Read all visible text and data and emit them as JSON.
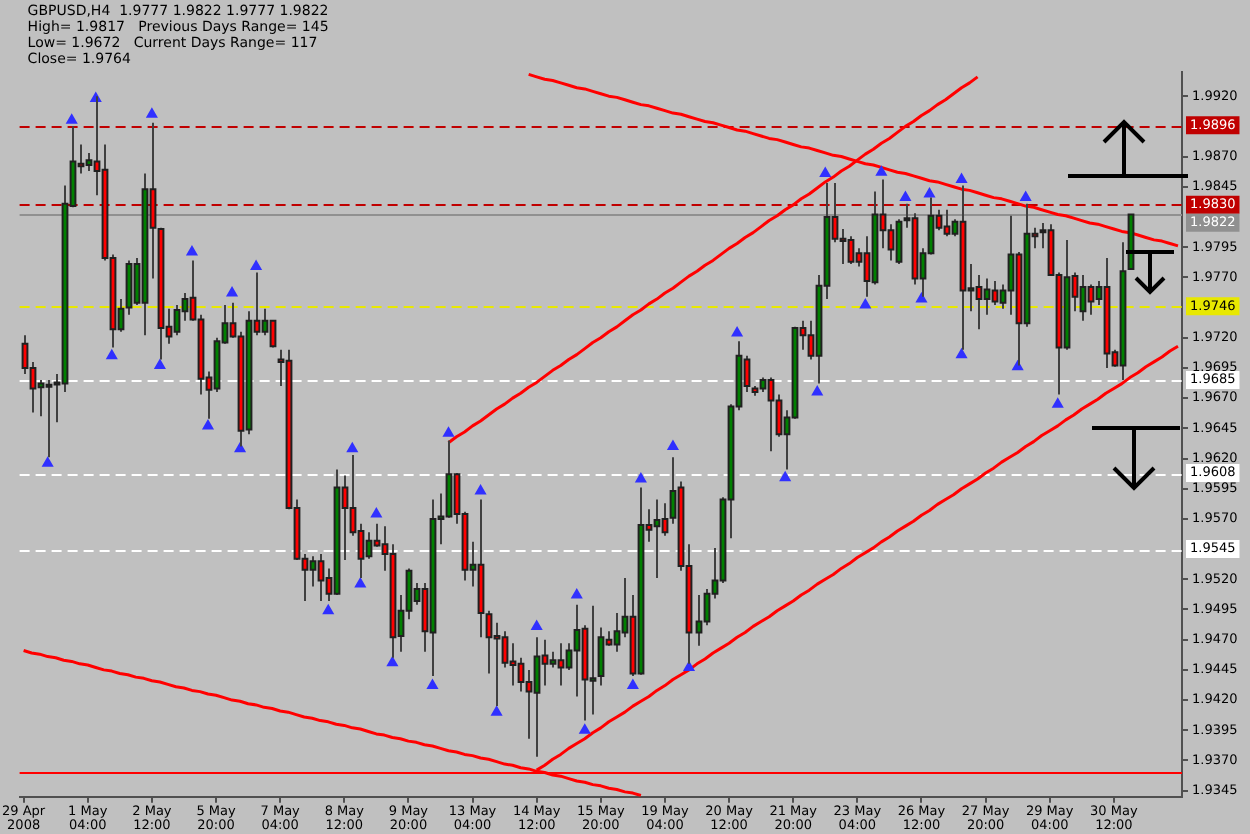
{
  "chart_data": {
    "type": "candlestick",
    "annotations": [
      "GBPUSD,H4  1.9777 1.9822 1.9777 1.9822",
      "High= 1.9817   Previous Days Range= 145",
      "Low= 1.9672   Current Days Range= 117",
      "Close= 1.9764"
    ],
    "categories": [
      "29 Apr 2008",
      null,
      null,
      null,
      null,
      null,
      null,
      null,
      "1 May 04:00",
      null,
      null,
      null,
      null,
      null,
      null,
      null,
      "2 May 12:00",
      null,
      null,
      null,
      null,
      null,
      null,
      null,
      "5 May 20:00",
      null,
      null,
      null,
      null,
      null,
      null,
      null,
      "7 May 04:00",
      null,
      null,
      null,
      null,
      null,
      null,
      null,
      "8 May 12:00",
      null,
      null,
      null,
      null,
      null,
      null,
      null,
      "9 May 20:00",
      null,
      null,
      null,
      null,
      null,
      null,
      null,
      "13 May 04:00",
      null,
      null,
      null,
      null,
      null,
      null,
      null,
      "14 May 12:00",
      null,
      null,
      null,
      null,
      null,
      null,
      null,
      "15 May 20:00",
      null,
      null,
      null,
      null,
      null,
      null,
      null,
      "19 May 04:00",
      null,
      null,
      null,
      null,
      null,
      null,
      null,
      "20 May 12:00",
      null,
      null,
      null,
      null,
      null,
      null,
      null,
      "21 May 20:00",
      null,
      null,
      null,
      null,
      null,
      null,
      null,
      "23 May 04:00",
      null,
      null,
      null,
      null,
      null,
      null,
      null,
      "26 May 12:00",
      null,
      null,
      null,
      null,
      null,
      null,
      null,
      "27 May 20:00",
      null,
      null,
      null,
      null,
      null,
      null,
      null,
      "29 May 04:00",
      null,
      null,
      null,
      null,
      null,
      null,
      null,
      "30 May 12:00",
      null,
      null,
      null,
      null,
      null,
      null,
      null,
      null
    ],
    "ohlc": [
      [
        1.9715,
        1.9722,
        1.969,
        1.9695
      ],
      [
        1.9695,
        1.97,
        1.9658,
        1.9678
      ],
      [
        1.9679,
        1.9685,
        1.9655,
        1.9682
      ],
      [
        1.9681,
        1.9685,
        1.9621,
        1.968
      ],
      [
        1.9682,
        1.969,
        1.965,
        1.9683
      ],
      [
        1.9682,
        1.9846,
        1.9675,
        1.9831
      ],
      [
        1.9829,
        1.9895,
        1.9828,
        1.9866
      ],
      [
        1.9864,
        1.988,
        1.9856,
        1.9862
      ],
      [
        1.9863,
        1.9873,
        1.9858,
        1.9867
      ],
      [
        1.9866,
        1.992,
        1.9838,
        1.9858
      ],
      [
        1.9859,
        1.988,
        1.9784,
        1.9786
      ],
      [
        1.9786,
        1.9789,
        1.9712,
        1.9727
      ],
      [
        1.9727,
        1.9752,
        1.9725,
        1.9744
      ],
      [
        1.9745,
        1.9784,
        1.9739,
        1.9781
      ],
      [
        1.9749,
        1.9786,
        1.9747,
        1.9781
      ],
      [
        1.9749,
        1.9856,
        1.9722,
        1.9843
      ],
      [
        1.9843,
        1.9898,
        1.9769,
        1.9811
      ],
      [
        1.981,
        1.9811,
        1.9702,
        1.9728
      ],
      [
        1.9729,
        1.9744,
        1.9715,
        1.9721
      ],
      [
        1.9725,
        1.9747,
        1.9722,
        1.9743
      ],
      [
        1.9742,
        1.9757,
        1.9734,
        1.9752
      ],
      [
        1.9753,
        1.9784,
        1.9734,
        1.9735
      ],
      [
        1.9735,
        1.9739,
        1.9673,
        1.9686
      ],
      [
        1.9687,
        1.9692,
        1.9653,
        1.9677
      ],
      [
        1.9678,
        1.972,
        1.9675,
        1.9717
      ],
      [
        1.9716,
        1.9747,
        1.9715,
        1.9732
      ],
      [
        1.9732,
        1.9749,
        1.972,
        1.9721
      ],
      [
        1.9721,
        1.9725,
        1.963,
        1.9643
      ],
      [
        1.9644,
        1.9742,
        1.964,
        1.9734
      ],
      [
        1.9734,
        1.9774,
        1.9722,
        1.9725
      ],
      [
        1.9725,
        1.9744,
        1.9722,
        1.9734
      ],
      [
        1.9734,
        1.9734,
        1.9712,
        1.9713
      ],
      [
        1.9702,
        1.971,
        1.968,
        1.97
      ],
      [
        1.9701,
        1.971,
        1.9578,
        1.9579
      ],
      [
        1.9579,
        1.9586,
        1.9536,
        1.9537
      ],
      [
        1.9537,
        1.9541,
        1.9502,
        1.9528
      ],
      [
        1.9528,
        1.9539,
        1.9514,
        1.9535
      ],
      [
        1.9535,
        1.9541,
        1.9502,
        1.9519
      ],
      [
        1.9521,
        1.9529,
        1.9502,
        1.9508
      ],
      [
        1.9508,
        1.9611,
        1.9507,
        1.9596
      ],
      [
        1.9596,
        1.9606,
        1.9536,
        1.9579
      ],
      [
        1.9579,
        1.9623,
        1.9556,
        1.9559
      ],
      [
        1.956,
        1.9566,
        1.9521,
        1.9537
      ],
      [
        1.9539,
        1.9559,
        1.9537,
        1.9552
      ],
      [
        1.9552,
        1.9566,
        1.9547,
        1.9548
      ],
      [
        1.9549,
        1.9564,
        1.9527,
        1.9541
      ],
      [
        1.9541,
        1.9549,
        1.9455,
        1.9472
      ],
      [
        1.9473,
        1.9507,
        1.946,
        1.9494
      ],
      [
        1.9494,
        1.9529,
        1.9487,
        1.9527
      ],
      [
        1.9502,
        1.9517,
        1.9499,
        1.9512
      ],
      [
        1.9512,
        1.9517,
        1.946,
        1.9477
      ],
      [
        1.9476,
        1.9586,
        1.944,
        1.957
      ],
      [
        1.957,
        1.9591,
        1.9549,
        1.9572
      ],
      [
        1.9572,
        1.9635,
        1.9571,
        1.9607
      ],
      [
        1.9607,
        1.9608,
        1.9566,
        1.9574
      ],
      [
        1.9574,
        1.9576,
        1.9519,
        1.9528
      ],
      [
        1.9528,
        1.9551,
        1.9514,
        1.9532
      ],
      [
        1.9532,
        1.9586,
        1.9472,
        1.9492
      ],
      [
        1.9491,
        1.9494,
        1.9442,
        1.9472
      ],
      [
        1.9473,
        1.9484,
        1.9415,
        1.9471
      ],
      [
        1.9472,
        1.9477,
        1.9447,
        1.9451
      ],
      [
        1.9452,
        1.9467,
        1.9432,
        1.9449
      ],
      [
        1.945,
        1.9455,
        1.9427,
        1.9435
      ],
      [
        1.9435,
        1.9445,
        1.9388,
        1.9427
      ],
      [
        1.9426,
        1.9472,
        1.9373,
        1.9456
      ],
      [
        1.9457,
        1.947,
        1.9432,
        1.945
      ],
      [
        1.945,
        1.946,
        1.9447,
        1.9453
      ],
      [
        1.9453,
        1.9467,
        1.9432,
        1.9447
      ],
      [
        1.9447,
        1.9467,
        1.9445,
        1.9461
      ],
      [
        1.9461,
        1.9499,
        1.9423,
        1.9478
      ],
      [
        1.9479,
        1.9482,
        1.9403,
        1.9437
      ],
      [
        1.9436,
        1.9498,
        1.9408,
        1.9438
      ],
      [
        1.944,
        1.948,
        1.9432,
        1.9472
      ],
      [
        1.947,
        1.9477,
        1.9465,
        1.9466
      ],
      [
        1.9466,
        1.9492,
        1.946,
        1.9477
      ],
      [
        1.9476,
        1.9521,
        1.9472,
        1.9489
      ],
      [
        1.9489,
        1.9507,
        1.944,
        1.9442
      ],
      [
        1.9442,
        1.9596,
        1.9441,
        1.9565
      ],
      [
        1.9565,
        1.9578,
        1.9551,
        1.9561
      ],
      [
        1.9564,
        1.9586,
        1.9521,
        1.9569
      ],
      [
        1.957,
        1.9583,
        1.9556,
        1.9559
      ],
      [
        1.9571,
        1.9621,
        1.9566,
        1.9593
      ],
      [
        1.9596,
        1.9601,
        1.9527,
        1.9531
      ],
      [
        1.9531,
        1.9549,
        1.945,
        1.9476
      ],
      [
        1.9476,
        1.9507,
        1.9465,
        1.9485
      ],
      [
        1.9485,
        1.9512,
        1.9482,
        1.9508
      ],
      [
        1.9508,
        1.9546,
        1.9504,
        1.9519
      ],
      [
        1.9519,
        1.9588,
        1.9517,
        1.9586
      ],
      [
        1.9586,
        1.9665,
        1.9554,
        1.9663
      ],
      [
        1.9663,
        1.9717,
        1.966,
        1.9705
      ],
      [
        1.9702,
        1.9705,
        1.9675,
        1.968
      ],
      [
        1.9678,
        1.968,
        1.9672,
        1.9675
      ],
      [
        1.9678,
        1.9687,
        1.9675,
        1.9685
      ],
      [
        1.9685,
        1.9687,
        1.9626,
        1.9668
      ],
      [
        1.9668,
        1.9673,
        1.9638,
        1.964
      ],
      [
        1.964,
        1.966,
        1.9611,
        1.9654
      ],
      [
        1.9654,
        1.9729,
        1.9653,
        1.9728
      ],
      [
        1.9728,
        1.9734,
        1.971,
        1.9722
      ],
      [
        1.9722,
        1.9734,
        1.9702,
        1.9705
      ],
      [
        1.9705,
        1.9772,
        1.9682,
        1.9763
      ],
      [
        1.9763,
        1.9848,
        1.9752,
        1.982
      ],
      [
        1.982,
        1.9848,
        1.9799,
        1.9802
      ],
      [
        1.9802,
        1.981,
        1.9781,
        1.98
      ],
      [
        1.9801,
        1.9804,
        1.9781,
        1.9783
      ],
      [
        1.979,
        1.9794,
        1.9779,
        1.9783
      ],
      [
        1.979,
        1.9804,
        1.9754,
        1.9767
      ],
      [
        1.9766,
        1.9841,
        1.9764,
        1.9822
      ],
      [
        1.9822,
        1.9851,
        1.9794,
        1.9809
      ],
      [
        1.9809,
        1.9814,
        1.9784,
        1.9793
      ],
      [
        1.9783,
        1.9818,
        1.9781,
        1.9816
      ],
      [
        1.9818,
        1.9831,
        1.9811,
        1.9819
      ],
      [
        1.9819,
        1.9823,
        1.9764,
        1.9769
      ],
      [
        1.9769,
        1.9794,
        1.9754,
        1.979
      ],
      [
        1.979,
        1.9836,
        1.9789,
        1.9821
      ],
      [
        1.9821,
        1.9826,
        1.9809,
        1.9811
      ],
      [
        1.9812,
        1.9826,
        1.9804,
        1.9806
      ],
      [
        1.9806,
        1.9818,
        1.9804,
        1.9816
      ],
      [
        1.9816,
        1.9846,
        1.971,
        1.9759
      ],
      [
        1.9759,
        1.9781,
        1.9742,
        1.9761
      ],
      [
        1.9762,
        1.9772,
        1.9727,
        1.9752
      ],
      [
        1.9752,
        1.9769,
        1.9739,
        1.976
      ],
      [
        1.9759,
        1.9767,
        1.9747,
        1.975
      ],
      [
        1.9749,
        1.9764,
        1.9744,
        1.9759
      ],
      [
        1.9759,
        1.9821,
        1.9739,
        1.9789
      ],
      [
        1.9789,
        1.9791,
        1.9697,
        1.9732
      ],
      [
        1.9732,
        1.9831,
        1.9729,
        1.9806
      ],
      [
        1.9806,
        1.9811,
        1.9794,
        1.9804
      ],
      [
        1.9808,
        1.9815,
        1.9794,
        1.9809
      ],
      [
        1.9809,
        1.9814,
        1.9771,
        1.9772
      ],
      [
        1.9772,
        1.9774,
        1.9673,
        1.9712
      ],
      [
        1.9712,
        1.9801,
        1.971,
        1.977
      ],
      [
        1.9771,
        1.9774,
        1.9742,
        1.9754
      ],
      [
        1.9742,
        1.9772,
        1.9734,
        1.9762
      ],
      [
        1.9762,
        1.9764,
        1.9739,
        1.975
      ],
      [
        1.9752,
        1.9767,
        1.9747,
        1.9762
      ],
      [
        1.9762,
        1.9786,
        1.9695,
        1.9707
      ],
      [
        1.9708,
        1.971,
        1.9696,
        1.9697
      ],
      [
        1.9697,
        1.9799,
        1.9685,
        1.9775
      ],
      [
        1.9777,
        1.9822,
        1.9777,
        1.9822
      ],
      null,
      null,
      null,
      null,
      null,
      null
    ],
    "series": [
      {
        "type": "scatter",
        "marker": "triangle",
        "color": "#3030ff",
        "values": [
          null,
          null,
          null,
          null,
          null,
          null,
          1.99,
          null,
          null,
          1.9918,
          null,
          null,
          null,
          null,
          null,
          null,
          1.9905,
          null,
          null,
          null,
          null,
          1.9791,
          null,
          null,
          null,
          null,
          1.9757,
          null,
          null,
          1.9779,
          null,
          null,
          null,
          null,
          null,
          null,
          null,
          null,
          null,
          null,
          null,
          1.9628,
          null,
          null,
          1.9574,
          null,
          null,
          null,
          null,
          null,
          null,
          null,
          null,
          1.9641,
          null,
          null,
          null,
          1.9593,
          null,
          null,
          null,
          null,
          null,
          null,
          1.9481,
          null,
          null,
          null,
          null,
          1.9507,
          null,
          null,
          null,
          null,
          null,
          null,
          null,
          1.9603,
          null,
          null,
          null,
          1.963,
          null,
          null,
          null,
          null,
          null,
          null,
          null,
          1.9724,
          null,
          null,
          null,
          null,
          null,
          null,
          null,
          null,
          null,
          null,
          1.9856,
          null,
          null,
          null,
          null,
          null,
          null,
          1.9857,
          null,
          null,
          1.9836,
          null,
          null,
          1.9839,
          null,
          null,
          null,
          1.9851,
          null,
          null,
          null,
          null,
          null,
          null,
          null,
          1.9836,
          null,
          null,
          null,
          null,
          null,
          null,
          null,
          null,
          null,
          null,
          null,
          null,
          null,
          null,
          null,
          null,
          null,
          null,
          null
        ]
      },
      {
        "type": "scatter",
        "marker": "triangle",
        "color": "#3030ff",
        "values": [
          null,
          null,
          null,
          1.9616,
          null,
          null,
          null,
          null,
          null,
          null,
          null,
          1.9705,
          null,
          null,
          null,
          null,
          null,
          1.9697,
          null,
          null,
          null,
          null,
          null,
          1.9647,
          null,
          null,
          null,
          1.9628,
          null,
          null,
          null,
          null,
          null,
          null,
          null,
          null,
          null,
          null,
          1.9494,
          null,
          null,
          null,
          1.9516,
          null,
          null,
          null,
          1.9451,
          null,
          null,
          null,
          null,
          1.9432,
          null,
          null,
          null,
          null,
          null,
          null,
          null,
          1.941,
          null,
          null,
          null,
          null,
          null,
          null,
          null,
          null,
          null,
          null,
          1.9395,
          null,
          null,
          null,
          null,
          null,
          1.9432,
          null,
          null,
          null,
          null,
          null,
          null,
          1.9447,
          null,
          null,
          null,
          null,
          null,
          null,
          null,
          null,
          null,
          null,
          null,
          1.9604,
          null,
          null,
          null,
          1.9675,
          null,
          null,
          null,
          null,
          null,
          1.9747,
          null,
          null,
          null,
          null,
          null,
          null,
          1.9752,
          null,
          null,
          null,
          null,
          1.9706,
          null,
          null,
          null,
          null,
          null,
          null,
          1.9696,
          null,
          null,
          null,
          null,
          1.9665,
          null,
          null,
          null,
          null,
          null,
          null,
          null,
          null,
          null,
          null,
          null,
          null,
          null,
          null,
          null
        ]
      },
      {
        "type": "line",
        "color": "#ff0000",
        "values": [
          null,
          null,
          null,
          null,
          null,
          null,
          null,
          null,
          null,
          null,
          null,
          null,
          null,
          null,
          null,
          null,
          null,
          null,
          null,
          null,
          null,
          null,
          null,
          null,
          null,
          null,
          null,
          null,
          null,
          null,
          null,
          null,
          null,
          null,
          null,
          null,
          null,
          null,
          null,
          null,
          null,
          null,
          null,
          null,
          null,
          null,
          null,
          null,
          null,
          null,
          null,
          null,
          null,
          null,
          null,
          null,
          null,
          null,
          null,
          null,
          null,
          null,
          null,
          1.9938,
          1.9936,
          1.9934,
          1.9933,
          1.9931,
          1.9929,
          1.9927,
          1.9926,
          1.9924,
          1.9922,
          1.992,
          1.9919,
          1.9917,
          1.9915,
          1.9913,
          1.9912,
          1.991,
          1.9908,
          1.9906,
          1.9905,
          1.9903,
          1.9901,
          1.9899,
          1.9898,
          1.9896,
          1.9894,
          1.9892,
          1.9891,
          1.9889,
          1.9887,
          1.9885,
          1.9884,
          1.9882,
          1.988,
          1.9878,
          1.9877,
          1.9875,
          1.9873,
          1.9871,
          1.987,
          1.9868,
          1.9866,
          1.9864,
          1.9863,
          1.9861,
          1.9859,
          1.9857,
          1.9856,
          1.9854,
          1.9852,
          1.985,
          1.9849,
          1.9847,
          1.9845,
          1.9843,
          1.9842,
          1.984,
          1.9838,
          1.9836,
          1.9835,
          1.9833,
          1.9831,
          1.9829,
          1.9828,
          1.9826,
          1.9824,
          1.9822,
          1.9821,
          1.9819,
          1.9817,
          1.9815,
          1.9814,
          1.9812,
          1.981,
          1.9808,
          1.9807,
          1.9805,
          1.9803,
          1.9801,
          1.98,
          1.9798,
          1.9796
        ]
      },
      {
        "type": "line",
        "color": "#ff0000",
        "values": [
          null,
          null,
          null,
          null,
          null,
          null,
          null,
          null,
          null,
          null,
          null,
          null,
          null,
          null,
          null,
          null,
          null,
          null,
          null,
          null,
          null,
          null,
          null,
          null,
          null,
          null,
          null,
          null,
          null,
          null,
          null,
          null,
          null,
          null,
          null,
          null,
          null,
          null,
          null,
          null,
          null,
          null,
          null,
          null,
          null,
          null,
          null,
          null,
          null,
          null,
          null,
          null,
          null,
          1.9633,
          1.9638,
          1.9642,
          1.9647,
          1.9651,
          1.9656,
          1.9661,
          1.9665,
          1.967,
          1.9674,
          1.9679,
          1.9683,
          1.9688,
          1.9693,
          1.9697,
          1.9702,
          1.9706,
          1.9711,
          1.9716,
          1.972,
          1.9725,
          1.9729,
          1.9734,
          1.9739,
          1.9743,
          1.9748,
          1.9752,
          1.9757,
          1.9761,
          1.9766,
          1.9771,
          1.9775,
          1.978,
          1.9784,
          1.9789,
          1.9794,
          1.9798,
          1.9803,
          1.9807,
          1.9812,
          1.9817,
          1.9821,
          1.9826,
          1.983,
          1.9835,
          1.9839,
          1.9844,
          1.9849,
          1.9853,
          1.9858,
          1.9862,
          1.9867,
          1.9872,
          1.9876,
          1.9881,
          1.9885,
          1.989,
          1.9895,
          1.9899,
          1.9904,
          1.9908,
          1.9913,
          1.9917,
          1.9922,
          1.9927,
          1.9931,
          1.9936,
          null,
          null,
          null,
          null,
          null,
          null,
          null,
          null,
          null,
          null,
          null,
          null,
          null,
          null,
          null,
          null,
          null,
          null,
          null,
          null,
          null,
          null,
          null,
          null,
          null
        ]
      },
      {
        "type": "line",
        "color": "#ff0000",
        "values": [
          1.9461,
          1.9459,
          1.9458,
          1.9456,
          1.9455,
          1.9453,
          1.9452,
          1.945,
          1.9449,
          1.9447,
          1.9445,
          1.9444,
          1.9442,
          1.9441,
          1.9439,
          1.9438,
          1.9436,
          1.9435,
          1.9433,
          1.9431,
          1.943,
          1.9428,
          1.9427,
          1.9425,
          1.9424,
          1.9422,
          1.942,
          1.9419,
          1.9417,
          1.9416,
          1.9414,
          1.9413,
          1.9411,
          1.941,
          1.9408,
          1.9406,
          1.9405,
          1.9403,
          1.9402,
          1.94,
          1.9399,
          1.9397,
          1.9396,
          1.9394,
          1.9392,
          1.9391,
          1.9389,
          1.9388,
          1.9386,
          1.9385,
          1.9383,
          1.9382,
          1.938,
          1.9378,
          1.9377,
          1.9375,
          1.9374,
          1.9372,
          1.9371,
          1.9369,
          1.9367,
          1.9366,
          1.9364,
          1.9363,
          1.9361,
          1.936,
          1.9358,
          1.9357,
          1.9355,
          1.9353,
          1.9352,
          1.935,
          1.9349,
          1.9347,
          1.9346,
          1.9344,
          1.9343,
          1.9341,
          null,
          null,
          null,
          null,
          null,
          null,
          null,
          null,
          null,
          null,
          null,
          null,
          null,
          null,
          null,
          null,
          null,
          null,
          null,
          null,
          null,
          null,
          null,
          null,
          null,
          null,
          null,
          null,
          null,
          null,
          null,
          null,
          null,
          null,
          null,
          null,
          null,
          null,
          null,
          null,
          null,
          null,
          null,
          null,
          null,
          null,
          null,
          null,
          null,
          null,
          null,
          null,
          null,
          null,
          null,
          null,
          null,
          null,
          null,
          null,
          null,
          null,
          null,
          null,
          null,
          null,
          null
        ]
      },
      {
        "type": "line",
        "color": "#ff0000",
        "values": [
          null,
          null,
          null,
          null,
          null,
          null,
          null,
          null,
          null,
          null,
          null,
          null,
          null,
          null,
          null,
          null,
          null,
          null,
          null,
          null,
          null,
          null,
          null,
          null,
          null,
          null,
          null,
          null,
          null,
          null,
          null,
          null,
          null,
          null,
          null,
          null,
          null,
          null,
          null,
          null,
          null,
          null,
          null,
          null,
          null,
          null,
          null,
          null,
          null,
          null,
          null,
          null,
          null,
          null,
          null,
          null,
          null,
          null,
          null,
          null,
          null,
          null,
          null,
          null,
          1.9362,
          1.9366,
          1.9371,
          1.9375,
          1.938,
          1.9384,
          1.9388,
          1.9393,
          1.9397,
          1.9402,
          1.9406,
          1.941,
          1.9415,
          1.9419,
          1.9423,
          1.9428,
          1.9432,
          1.9437,
          1.9441,
          1.9445,
          1.945,
          1.9454,
          1.9459,
          1.9463,
          1.9467,
          1.9472,
          1.9476,
          1.9481,
          1.9485,
          1.9489,
          1.9494,
          1.9498,
          1.9502,
          1.9507,
          1.9511,
          1.9516,
          1.952,
          1.9524,
          1.9529,
          1.9533,
          1.9538,
          1.9542,
          1.9546,
          1.9551,
          1.9555,
          1.956,
          1.9564,
          1.9568,
          1.9573,
          1.9577,
          1.9582,
          1.9586,
          1.959,
          1.9595,
          1.9599,
          1.9603,
          1.9608,
          1.9612,
          1.9617,
          1.9621,
          1.9625,
          1.963,
          1.9634,
          1.9639,
          1.9643,
          1.9647,
          1.9652,
          1.9656,
          1.9661,
          1.9665,
          1.9669,
          1.9674,
          1.9678,
          1.9682,
          1.9687,
          1.9691,
          1.9696,
          1.97,
          1.9704,
          1.9709,
          1.9713
        ]
      }
    ],
    "ylim": [
      1.934,
      1.994
    ],
    "yticks": [
      {
        "value": 1.9345,
        "label": "1.9345"
      },
      {
        "value": 1.937,
        "label": "1.9370"
      },
      {
        "value": 1.9395,
        "label": "1.9395"
      },
      {
        "value": 1.942,
        "label": "1.9420"
      },
      {
        "value": 1.9445,
        "label": "1.9445"
      },
      {
        "value": 1.947,
        "label": "1.9470"
      },
      {
        "value": 1.9495,
        "label": "1.9495"
      },
      {
        "value": 1.952,
        "label": "1.9520"
      },
      {
        "value": 1.957,
        "label": "1.9570"
      },
      {
        "value": 1.9595,
        "label": "1.9595"
      },
      {
        "value": 1.962,
        "label": "1.9620"
      },
      {
        "value": 1.9645,
        "label": "1.9645"
      },
      {
        "value": 1.967,
        "label": "1.9670"
      },
      {
        "value": 1.9695,
        "label": "1.9695"
      },
      {
        "value": 1.972,
        "label": "1.9720"
      },
      {
        "value": 1.977,
        "label": "1.9770"
      },
      {
        "value": 1.9795,
        "label": "1.9795"
      },
      {
        "value": 1.9845,
        "label": "1.9845"
      },
      {
        "value": 1.987,
        "label": "1.9870"
      },
      {
        "value": 1.992,
        "label": "1.9920"
      }
    ],
    "ref_lines": [
      {
        "axis": "y",
        "value": 1.9896,
        "label": "1.9896",
        "color": "#c00000",
        "line_style": "dashed"
      },
      {
        "axis": "y",
        "value": 1.983,
        "label": "1.9830",
        "color": "#c00000",
        "line_style": "dashed"
      },
      {
        "axis": "y",
        "value": 1.9822,
        "label": "1.9822",
        "color": "#909090",
        "line_style": "solid"
      },
      {
        "axis": "y",
        "value": 1.9746,
        "label": "1.9746",
        "color": "#e8e800",
        "line_style": "dashed"
      },
      {
        "axis": "y",
        "value": 1.9685,
        "label": "1.9685",
        "color": "#ffffff",
        "line_style": "dashed"
      },
      {
        "axis": "y",
        "value": 1.9608,
        "label": "1.9608",
        "color": "#ffffff",
        "line_style": "dashed"
      },
      {
        "axis": "y",
        "value": 1.9545,
        "label": "1.9545",
        "color": "#ffffff",
        "line_style": "dashed"
      },
      {
        "axis": "y",
        "value": 1.936,
        "color": "#ff0000",
        "line_style": "solid"
      }
    ],
    "grid": false,
    "legend": false
  }
}
